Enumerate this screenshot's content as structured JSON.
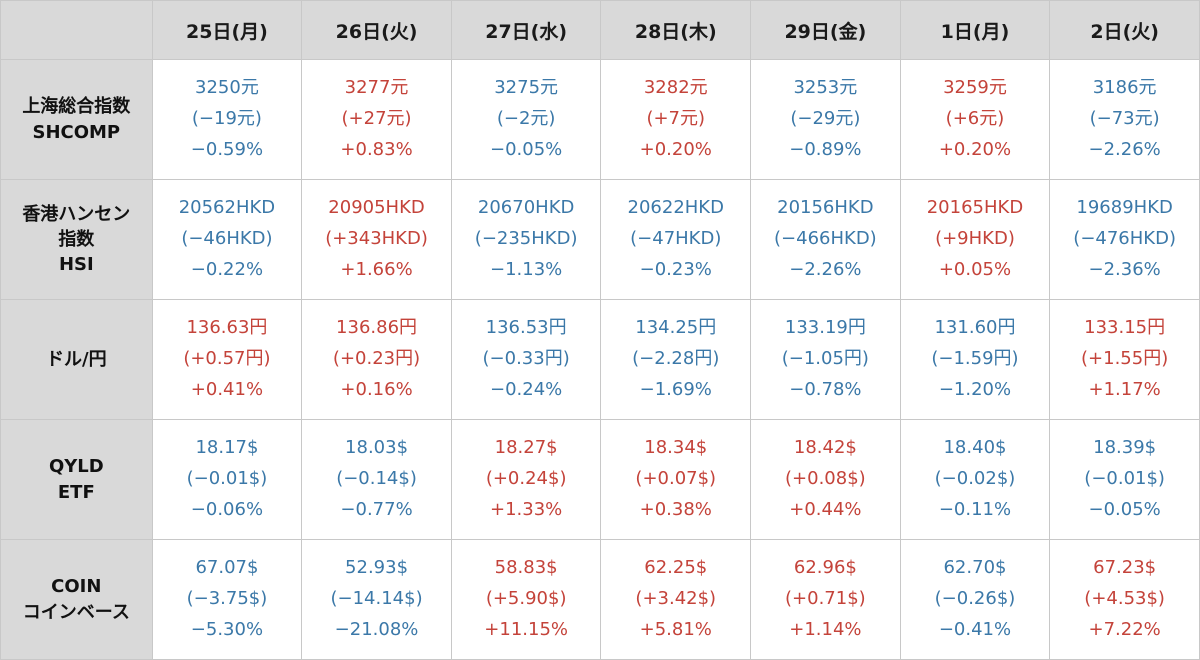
{
  "columns": [
    "",
    "25日(月)",
    "26日(火)",
    "27日(水)",
    "28日(木)",
    "29日(金)",
    "1日(月)",
    "2日(火)"
  ],
  "colors": {
    "up": "#c4433a",
    "down": "#3b78a8",
    "header_bg": "#d9d9d9"
  },
  "rows": [
    {
      "label": [
        "上海総合指数",
        "SHCOMP"
      ],
      "cells": [
        {
          "dir": "down",
          "price": "3250元",
          "change": "(−19元)",
          "pct": "−0.59%"
        },
        {
          "dir": "up",
          "price": "3277元",
          "change": "(+27元)",
          "pct": "+0.83%"
        },
        {
          "dir": "down",
          "price": "3275元",
          "change": "(−2元)",
          "pct": "−0.05%"
        },
        {
          "dir": "up",
          "price": "3282元",
          "change": "(+7元)",
          "pct": "+0.20%"
        },
        {
          "dir": "down",
          "price": "3253元",
          "change": "(−29元)",
          "pct": "−0.89%"
        },
        {
          "dir": "up",
          "price": "3259元",
          "change": "(+6元)",
          "pct": "+0.20%"
        },
        {
          "dir": "down",
          "price": "3186元",
          "change": "(−73元)",
          "pct": "−2.26%"
        }
      ]
    },
    {
      "label": [
        "香港ハンセン",
        "指数",
        "HSI"
      ],
      "cells": [
        {
          "dir": "down",
          "price": "20562HKD",
          "change": "(−46HKD)",
          "pct": "−0.22%"
        },
        {
          "dir": "up",
          "price": "20905HKD",
          "change": "(+343HKD)",
          "pct": "+1.66%"
        },
        {
          "dir": "down",
          "price": "20670HKD",
          "change": "(−235HKD)",
          "pct": "−1.13%"
        },
        {
          "dir": "down",
          "price": "20622HKD",
          "change": "(−47HKD)",
          "pct": "−0.23%"
        },
        {
          "dir": "down",
          "price": "20156HKD",
          "change": "(−466HKD)",
          "pct": "−2.26%"
        },
        {
          "dir": "up",
          "price": "20165HKD",
          "change": "(+9HKD)",
          "pct": "+0.05%"
        },
        {
          "dir": "down",
          "price": "19689HKD",
          "change": "(−476HKD)",
          "pct": "−2.36%"
        }
      ]
    },
    {
      "label": [
        "ドル/円"
      ],
      "cells": [
        {
          "dir": "up",
          "price": "136.63円",
          "change": "(+0.57円)",
          "pct": "+0.41%"
        },
        {
          "dir": "up",
          "price": "136.86円",
          "change": "(+0.23円)",
          "pct": "+0.16%"
        },
        {
          "dir": "down",
          "price": "136.53円",
          "change": "(−0.33円)",
          "pct": "−0.24%"
        },
        {
          "dir": "down",
          "price": "134.25円",
          "change": "(−2.28円)",
          "pct": "−1.69%"
        },
        {
          "dir": "down",
          "price": "133.19円",
          "change": "(−1.05円)",
          "pct": "−0.78%"
        },
        {
          "dir": "down",
          "price": "131.60円",
          "change": "(−1.59円)",
          "pct": "−1.20%"
        },
        {
          "dir": "up",
          "price": "133.15円",
          "change": "(+1.55円)",
          "pct": "+1.17%"
        }
      ]
    },
    {
      "label": [
        "QYLD",
        "ETF"
      ],
      "cells": [
        {
          "dir": "down",
          "price": "18.17$",
          "change": "(−0.01$)",
          "pct": "−0.06%"
        },
        {
          "dir": "down",
          "price": "18.03$",
          "change": "(−0.14$)",
          "pct": "−0.77%"
        },
        {
          "dir": "up",
          "price": "18.27$",
          "change": "(+0.24$)",
          "pct": "+1.33%"
        },
        {
          "dir": "up",
          "price": "18.34$",
          "change": "(+0.07$)",
          "pct": "+0.38%"
        },
        {
          "dir": "up",
          "price": "18.42$",
          "change": "(+0.08$)",
          "pct": "+0.44%"
        },
        {
          "dir": "down",
          "price": "18.40$",
          "change": "(−0.02$)",
          "pct": "−0.11%"
        },
        {
          "dir": "down",
          "price": "18.39$",
          "change": "(−0.01$)",
          "pct": "−0.05%"
        }
      ]
    },
    {
      "label": [
        "COIN",
        "コインベース"
      ],
      "cells": [
        {
          "dir": "down",
          "price": "67.07$",
          "change": "(−3.75$)",
          "pct": "−5.30%"
        },
        {
          "dir": "down",
          "price": "52.93$",
          "change": "(−14.14$)",
          "pct": "−21.08%"
        },
        {
          "dir": "up",
          "price": "58.83$",
          "change": "(+5.90$)",
          "pct": "+11.15%"
        },
        {
          "dir": "up",
          "price": "62.25$",
          "change": "(+3.42$)",
          "pct": "+5.81%"
        },
        {
          "dir": "up",
          "price": "62.96$",
          "change": "(+0.71$)",
          "pct": "+1.14%"
        },
        {
          "dir": "down",
          "price": "62.70$",
          "change": "(−0.26$)",
          "pct": "−0.41%"
        },
        {
          "dir": "up",
          "price": "67.23$",
          "change": "(+4.53$)",
          "pct": "+7.22%"
        }
      ]
    }
  ]
}
